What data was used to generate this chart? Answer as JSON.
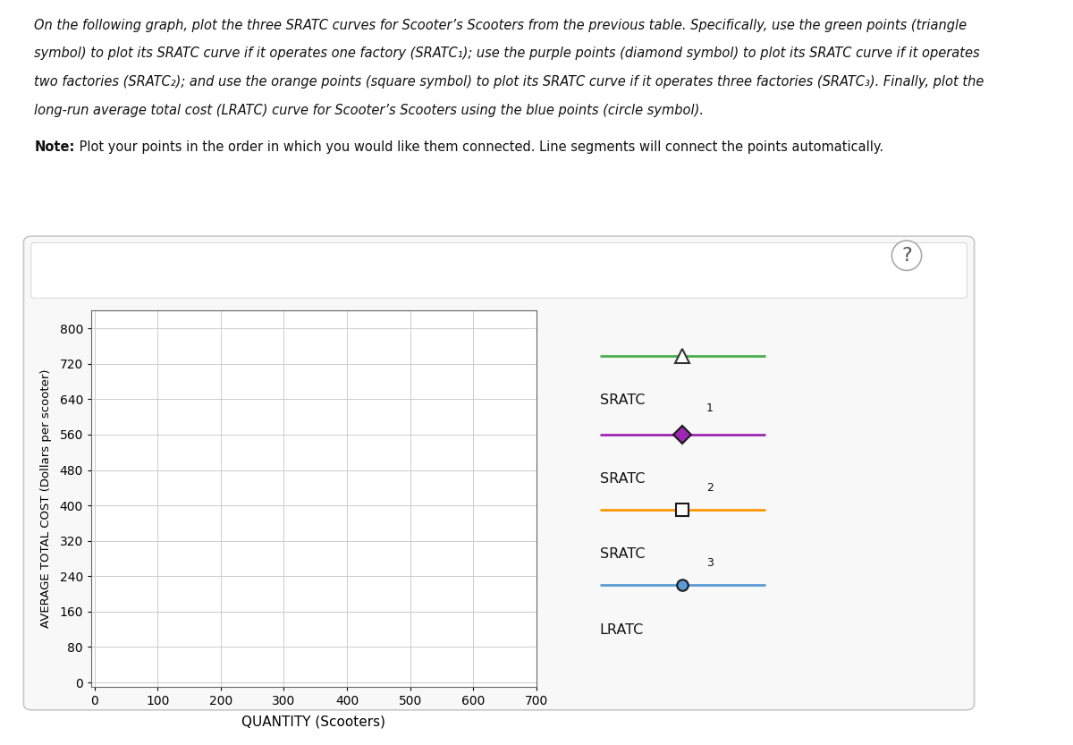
{
  "ylabel": "AVERAGE TOTAL COST (Dollars per scooter)",
  "xlabel": "QUANTITY (Scooters)",
  "yticks": [
    0,
    80,
    160,
    240,
    320,
    400,
    480,
    560,
    640,
    720,
    800
  ],
  "xticks": [
    0,
    100,
    200,
    300,
    400,
    500,
    600,
    700
  ],
  "ylim": [
    -10,
    840
  ],
  "xlim": [
    -5,
    700
  ],
  "sratc1_color": "#4caf50",
  "sratc2_color": "#9c27b0",
  "sratc3_color": "#ff9800",
  "lratc_color": "#5b9bd5",
  "background_color": "#ffffff",
  "grid_color": "#cccccc",
  "panel_facecolor": "#f8f8f8",
  "instruction_line1": "On the following graph, plot the three SRATC curves for Scooter’s Scooters from the previous table. Specifically, use the green points (triangle",
  "instruction_line2": "symbol) to plot its SRATC curve if it operates one factory (SRATC₁); use the purple points (diamond symbol) to plot its SRATC curve if it operates",
  "instruction_line3": "two factories (SRATC₂); and use the orange points (square symbol) to plot its SRATC curve if it operates three factories (SRATC₃). Finally, plot the",
  "instruction_line4": "long-run average total cost (LRATC) curve for Scooter’s Scooters using the blue points (circle symbol).",
  "note_line": "Note: Plot your points in the order in which you would like them connected. Line segments will connect the points automatically.",
  "legend_items": [
    {
      "marker": "^",
      "color": "#4caf50",
      "mfc": "white",
      "mec": "#333333",
      "label": "SRATC",
      "subscript": "1",
      "lw": 2.0,
      "ms": 11
    },
    {
      "marker": "D",
      "color": "#9c27b0",
      "mfc": "#9c27b0",
      "mec": "#1a1a1a",
      "label": "SRATC",
      "subscript": "2",
      "lw": 2.0,
      "ms": 10
    },
    {
      "marker": "s",
      "color": "#ff9800",
      "mfc": "white",
      "mec": "#1a1a1a",
      "label": "SRATC",
      "subscript": "3",
      "lw": 2.0,
      "ms": 10
    },
    {
      "marker": "o",
      "color": "#5b9bd5",
      "mfc": "#5b9bd5",
      "mec": "#1a1a1a",
      "label": "LRATC",
      "subscript": "",
      "lw": 2.0,
      "ms": 9
    }
  ]
}
